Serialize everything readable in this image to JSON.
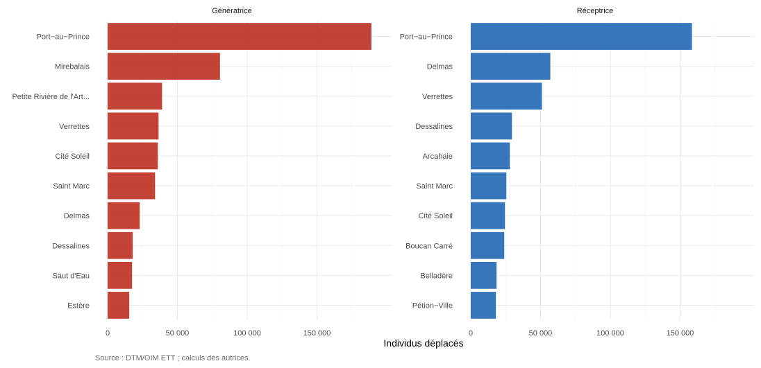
{
  "chart_data": {
    "type": "bar",
    "orientation": "horizontal",
    "xlabel": "Individus déplacés",
    "caption": "Source : DTM/OIM ETT ; calculs des autrices.",
    "xlim": [
      0,
      200000
    ],
    "xticks": [
      0,
      50000,
      100000,
      150000
    ],
    "xtick_labels": [
      "0",
      "50 000",
      "100 000",
      "150 000"
    ],
    "grid": true,
    "panels": [
      {
        "title": "Génératrice",
        "color": "#c0392b",
        "categories": [
          "Port−au−Prince",
          "Mirebalais",
          "Petite Rivière de l'Art...",
          "Verrettes",
          "Cité Soleil",
          "Saint Marc",
          "Delmas",
          "Dessalines",
          "Saut d'Eau",
          "Estère"
        ],
        "values": [
          189000,
          80500,
          39000,
          36500,
          36000,
          34000,
          23000,
          18000,
          17500,
          15500
        ]
      },
      {
        "title": "Réceptrice",
        "color": "#2c6fb7",
        "categories": [
          "Port−au−Prince",
          "Delmas",
          "Verrettes",
          "Dessalines",
          "Arcahaie",
          "Saint Marc",
          "Cité Soleil",
          "Boucan Carré",
          "Belladère",
          "Pétion−Ville"
        ],
        "values": [
          158500,
          57000,
          51000,
          29500,
          28000,
          25500,
          24500,
          24000,
          18500,
          18000
        ]
      }
    ]
  }
}
